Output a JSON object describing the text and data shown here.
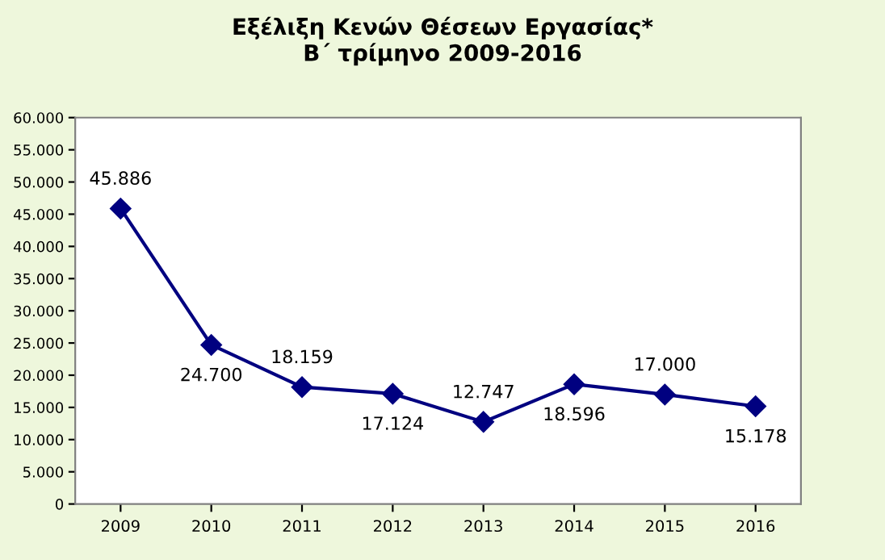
{
  "chart_data": {
    "type": "line",
    "title": "Εξέλιξη Κενών Θέσεων Εργασίας*\nΒ΄ τρίμηνο 2009-2016",
    "categories": [
      "2009",
      "2010",
      "2011",
      "2012",
      "2013",
      "2014",
      "2015",
      "2016"
    ],
    "series": [
      {
        "color": "#000080",
        "values": [
          45886,
          24700,
          18159,
          17124,
          12747,
          18596,
          17000,
          15178
        ],
        "value_labels": [
          "45.886",
          "24.700",
          "18.159",
          "17.124",
          "12.747",
          "18.596",
          "17.000",
          "15.178"
        ]
      }
    ],
    "ylim": [
      0,
      60000
    ],
    "yticks": [
      0,
      {
        "value": 5000,
        "label": "5.000"
      },
      {
        "value": 10000,
        "label": "10.000"
      },
      {
        "value": 15000,
        "label": "15.000"
      },
      {
        "value": 20000,
        "label": "20.000"
      },
      {
        "value": 25000,
        "label": "25.000"
      },
      {
        "value": 30000,
        "label": "30.000"
      },
      {
        "value": 35000,
        "label": "35.000"
      },
      {
        "value": 40000,
        "label": "40.000"
      },
      {
        "value": 45000,
        "label": "45.000"
      },
      {
        "value": 50000,
        "label": "50.000"
      },
      {
        "value": 55000,
        "label": "55.000"
      },
      {
        "value": 60000,
        "label": "60.000"
      }
    ],
    "marker": "diamond",
    "line_style": "solid",
    "grid": false,
    "legend": false
  }
}
